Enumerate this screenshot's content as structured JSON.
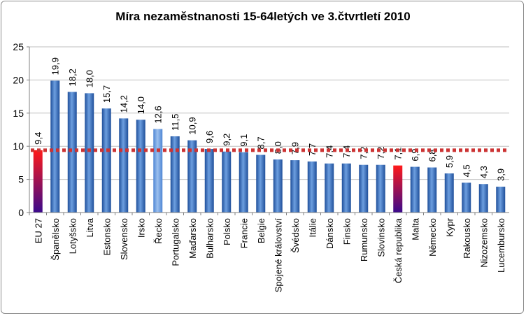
{
  "chart_data": {
    "type": "bar",
    "title": "Míra nezaměstnanosti 15-64letých ve 3.čtvrtletí 2010",
    "xlabel": "",
    "ylabel": "",
    "ylim": [
      0,
      25
    ],
    "yticks": [
      "0",
      "5",
      "10",
      "15",
      "20",
      "25"
    ],
    "grid": true,
    "legend": "none",
    "reference_line": {
      "value": 9.4,
      "color": "#cc3333",
      "style": "dotted"
    },
    "categories": [
      "EU 27",
      "Španělsko",
      "Lotyšsko",
      "Litva",
      "Estonsko",
      "Slovensko",
      "Irsko",
      "Řecko",
      "Portugalsko",
      "Maďarsko",
      "Bulharsko",
      "Polsko",
      "Francie",
      "Belgie",
      "Spojené království",
      "Švédsko",
      "Itálie",
      "Dánsko",
      "Finsko",
      "Rumunsko",
      "Slovinsko",
      "Česká republika",
      "Malta",
      "Německo",
      "Kypr",
      "Rakousko",
      "Nizozemsko",
      "Lucembursko"
    ],
    "values": [
      9.4,
      19.9,
      18.2,
      18.0,
      15.7,
      14.2,
      14.0,
      12.6,
      11.5,
      10.9,
      9.6,
      9.2,
      9.1,
      8.7,
      8.0,
      7.9,
      7.7,
      7.4,
      7.4,
      7.2,
      7.2,
      7.1,
      6.9,
      6.8,
      5.9,
      4.5,
      4.3,
      3.9
    ],
    "value_labels": [
      "9,4",
      "19,9",
      "18,2",
      "18,0",
      "15,7",
      "14,2",
      "14,0",
      "12,6",
      "11,5",
      "10,9",
      "9,6",
      "9,2",
      "9,1",
      "8,7",
      "8,0",
      "7,9",
      "7,7",
      "7,4",
      "7,4",
      "7,2",
      "7,2",
      "7,1",
      "6,9",
      "6,8",
      "5,9",
      "4,5",
      "4,3",
      "3,9"
    ],
    "colors": {
      "default_top": "#6d9fe0",
      "default_bottom": "#1f4f9a",
      "highlight_top": "#ff1a1a",
      "highlight_bottom": "#3a0a8c",
      "greek_top": "#9cc0ee",
      "greek_bottom": "#4e86d4",
      "gridline": "#bfbfbf",
      "axis": "#808080"
    },
    "highlighted_categories": [
      "EU 27",
      "Česká republika"
    ],
    "light_categories": [
      "Řecko"
    ]
  }
}
